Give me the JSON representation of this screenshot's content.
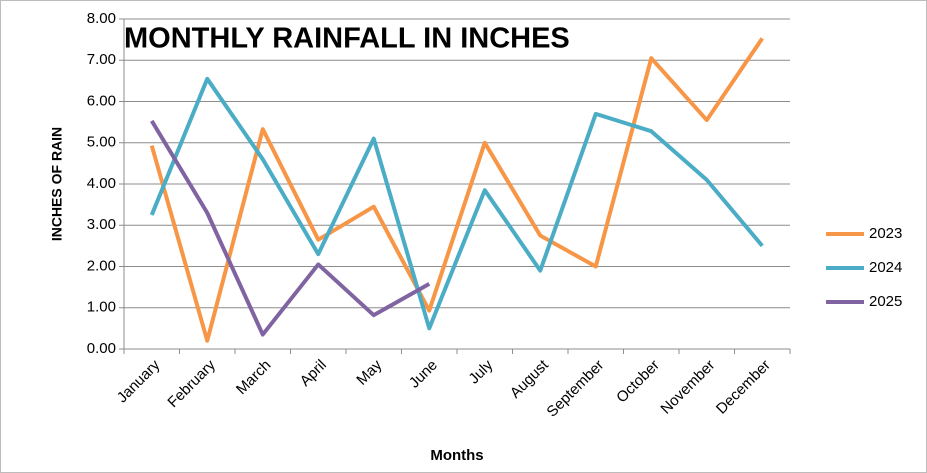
{
  "chart_data": {
    "type": "line",
    "title": "MONTHLY RAINFALL IN INCHES",
    "x_label": "Months",
    "y_label": "INCHES OF RAIN",
    "categories": [
      "January",
      "February",
      "March",
      "April",
      "May",
      "June",
      "July",
      "August",
      "September",
      "October",
      "November",
      "December"
    ],
    "series": [
      {
        "name": "2023",
        "color": "#f79646",
        "values": [
          4.93,
          0.2,
          5.33,
          2.65,
          3.45,
          0.93,
          5.0,
          2.75,
          2.0,
          7.05,
          5.55,
          7.53
        ]
      },
      {
        "name": "2024",
        "color": "#4bacc6",
        "values": [
          3.25,
          6.55,
          4.6,
          2.3,
          5.1,
          0.5,
          3.85,
          1.9,
          5.7,
          5.28,
          4.1,
          2.5
        ]
      },
      {
        "name": "2025",
        "color": "#8064a2",
        "values": [
          5.53,
          3.3,
          0.35,
          2.05,
          0.82,
          1.58,
          null,
          null,
          null,
          null,
          null,
          null
        ]
      }
    ],
    "ylim": [
      0,
      8
    ],
    "yticks": [
      {
        "value": 0,
        "label": "0.00"
      },
      {
        "value": 1,
        "label": "1.00"
      },
      {
        "value": 2,
        "label": "2.00"
      },
      {
        "value": 3,
        "label": "3.00"
      },
      {
        "value": 4,
        "label": "4.00"
      },
      {
        "value": 5,
        "label": "5.00"
      },
      {
        "value": 6,
        "label": "6.00"
      },
      {
        "value": 7,
        "label": "7.00"
      },
      {
        "value": 8,
        "label": "8.00"
      }
    ],
    "grid": true,
    "legend": "right"
  }
}
